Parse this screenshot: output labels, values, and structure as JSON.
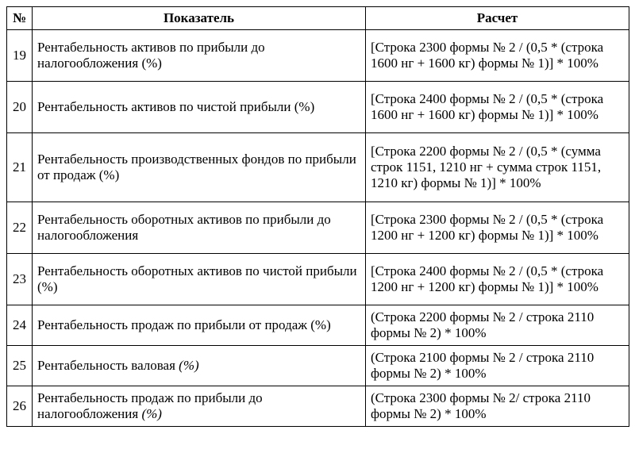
{
  "table": {
    "headers": {
      "num": "№",
      "indicator": "Показатель",
      "calc": "Расчет"
    },
    "rows": [
      {
        "n": "19",
        "indicator": "Рентабельность активов по прибыли до налогообложения (%)",
        "calc": "[Строка 2300 формы № 2 / (0,5 * (строка 1600 нг + 1600 кг) формы № 1)] * 100%",
        "h": "h1"
      },
      {
        "n": "20",
        "indicator": "Рентабельность активов по чистой прибыли (%)",
        "calc": "[Строка 2400 формы № 2 / (0,5 * (строка 1600 нг + 1600 кг) формы № 1)] * 100%",
        "h": "h1"
      },
      {
        "n": "21",
        "indicator": "Рентабельность производственных фондов по прибыли от продаж (%)",
        "calc": "[Строка 2200 формы № 2 / (0,5 * (сумма строк 1151, 1210 нг + сумма строк 1151, 1210 кг) формы № 1)] * 100%",
        "h": "h2"
      },
      {
        "n": "22",
        "indicator": "Рентабельность оборотных активов по прибыли до налогообложения",
        "calc": "[Строка 2300 формы № 2 / (0,5 * (строка 1200 нг + 1200 кг) формы № 1)] * 100%",
        "h": "h1"
      },
      {
        "n": "23",
        "indicator": "Рентабельность оборотных активов по чистой прибыли (%)",
        "calc": "[Строка 2400 формы № 2 / (0,5 * (строка 1200 нг + 1200 кг) формы № 1)] * 100%",
        "h": "h1"
      },
      {
        "n": "24",
        "indicator": "Рентабельность продаж по прибыли от продаж (%)",
        "calc": "(Строка 2200 формы № 2 / строка 2110 формы № 2) * 100%",
        "h": "h3"
      },
      {
        "n": "25",
        "indicator_html": "Рентабельность валовая <em>(%)</em>",
        "calc": "(Строка 2100 формы № 2 / строка 2110 формы № 2) * 100%",
        "h": "h3"
      },
      {
        "n": "26",
        "indicator_html": "Рентабельность продаж по прибыли до налогообложения <em>(%)</em>",
        "calc": "(Строка 2300 формы № 2/ строка 2110 формы № 2) * 100%",
        "h": "h3"
      }
    ],
    "colors": {
      "border": "#000000",
      "text": "#000000",
      "background": "#ffffff"
    },
    "font_family": "Times New Roman",
    "base_fontsize_pt": 13
  }
}
